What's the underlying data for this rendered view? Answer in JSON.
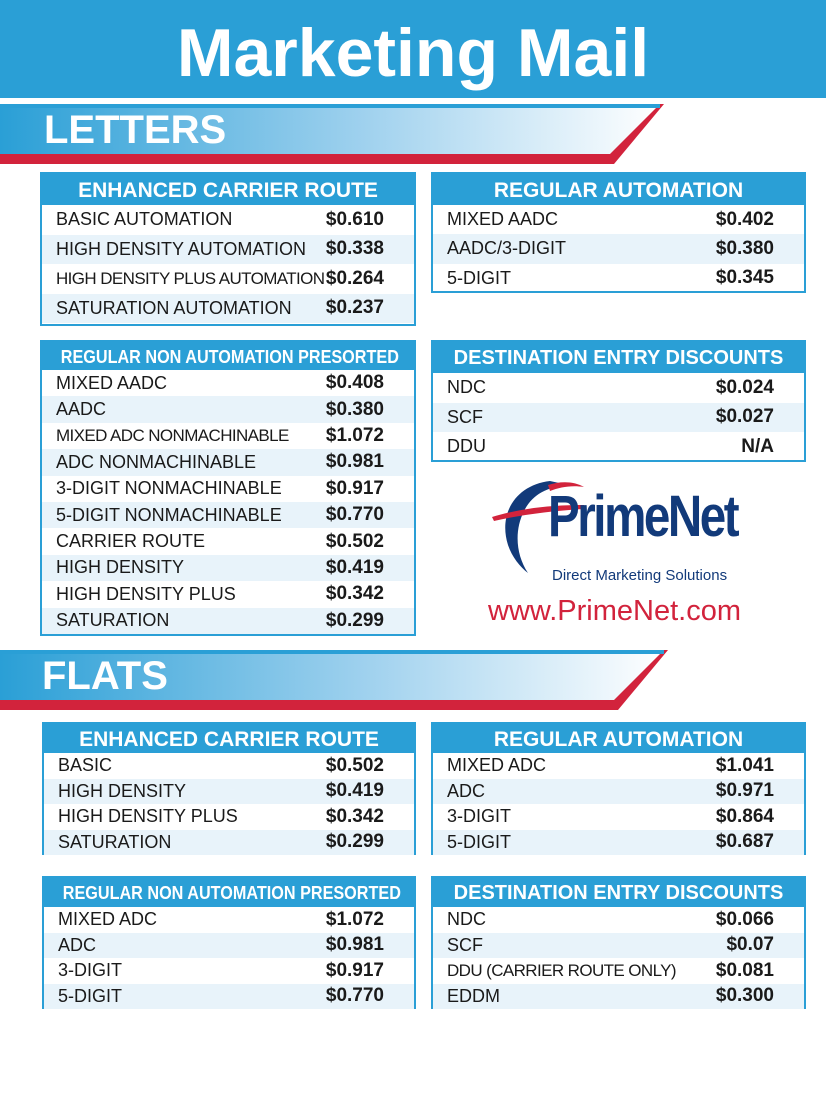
{
  "title": "Marketing Mail",
  "colors": {
    "accent": "#2a9fd6",
    "red": "#d2233c",
    "navy": "#123a7a"
  },
  "letters": {
    "heading": "LETTERS",
    "enhanced_carrier_route": {
      "header": "ENHANCED CARRIER ROUTE",
      "rows": [
        {
          "name": "BASIC AUTOMATION",
          "price": "$0.610"
        },
        {
          "name": "HIGH DENSITY AUTOMATION",
          "price": "$0.338"
        },
        {
          "name": "HIGH DENSITY PLUS AUTOMATION",
          "price": "$0.264"
        },
        {
          "name": "SATURATION AUTOMATION",
          "price": "$0.237"
        }
      ]
    },
    "regular_automation": {
      "header": "REGULAR AUTOMATION",
      "rows": [
        {
          "name": "MIXED AADC",
          "price": "$0.402"
        },
        {
          "name": "AADC/3-DIGIT",
          "price": "$0.380"
        },
        {
          "name": "5-DIGIT",
          "price": "$0.345"
        }
      ]
    },
    "regular_non_automation": {
      "header": "REGULAR NON AUTOMATION PRESORTED",
      "rows": [
        {
          "name": "MIXED AADC",
          "price": "$0.408"
        },
        {
          "name": "AADC",
          "price": "$0.380"
        },
        {
          "name": "MIXED ADC NONMACHINABLE",
          "price": "$1.072"
        },
        {
          "name": "ADC NONMACHINABLE",
          "price": "$0.981"
        },
        {
          "name": "3-DIGIT NONMACHINABLE",
          "price": "$0.917"
        },
        {
          "name": "5-DIGIT NONMACHINABLE",
          "price": "$0.770"
        },
        {
          "name": "CARRIER ROUTE",
          "price": "$0.502"
        },
        {
          "name": "HIGH DENSITY",
          "price": "$0.419"
        },
        {
          "name": "HIGH DENSITY PLUS",
          "price": "$0.342"
        },
        {
          "name": "SATURATION",
          "price": "$0.299"
        }
      ]
    },
    "destination_entry": {
      "header": "DESTINATION ENTRY DISCOUNTS",
      "rows": [
        {
          "name": "NDC",
          "price": "$0.024"
        },
        {
          "name": "SCF",
          "price": "$0.027"
        },
        {
          "name": "DDU",
          "price": "N/A"
        }
      ]
    }
  },
  "flats": {
    "heading": "FLATS",
    "enhanced_carrier_route": {
      "header": "ENHANCED CARRIER ROUTE",
      "rows": [
        {
          "name": "BASIC",
          "price": "$0.502"
        },
        {
          "name": "HIGH DENSITY",
          "price": "$0.419"
        },
        {
          "name": "HIGH DENSITY PLUS",
          "price": "$0.342"
        },
        {
          "name": "SATURATION",
          "price": "$0.299"
        }
      ]
    },
    "regular_automation": {
      "header": "REGULAR AUTOMATION",
      "rows": [
        {
          "name": "MIXED ADC",
          "price": "$1.041"
        },
        {
          "name": "ADC",
          "price": "$0.971"
        },
        {
          "name": "3-DIGIT",
          "price": "$0.864"
        },
        {
          "name": "5-DIGIT",
          "price": "$0.687"
        }
      ]
    },
    "regular_non_automation": {
      "header": "REGULAR NON AUTOMATION PRESORTED",
      "rows": [
        {
          "name": "MIXED ADC",
          "price": "$1.072"
        },
        {
          "name": "ADC",
          "price": "$0.981"
        },
        {
          "name": "3-DIGIT",
          "price": "$0.917"
        },
        {
          "name": "5-DIGIT",
          "price": "$0.770"
        }
      ]
    },
    "destination_entry": {
      "header": "DESTINATION ENTRY DISCOUNTS",
      "rows": [
        {
          "name": "NDC",
          "price": "$0.066"
        },
        {
          "name": "SCF",
          "price": "$0.07"
        },
        {
          "name": "DDU (CARRIER ROUTE ONLY)",
          "price": "$0.081"
        },
        {
          "name": "EDDM",
          "price": "$0.300"
        }
      ]
    }
  },
  "logo": {
    "brand": "PrimeNet",
    "tagline": "Direct Marketing Solutions",
    "url": "www.PrimeNet.com"
  }
}
